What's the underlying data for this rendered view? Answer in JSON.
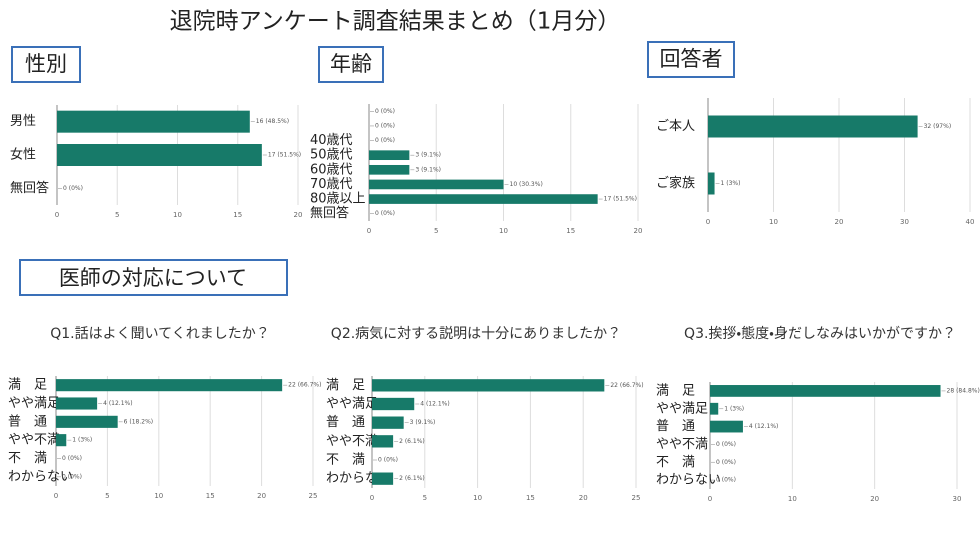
{
  "title": "退院時アンケート調査結果まとめ（1月分）",
  "section": "医師の対応について",
  "chart_data": [
    {
      "type": "bar",
      "orientation": "horizontal",
      "title": "性別",
      "color": "#177a69",
      "categories": [
        "男性",
        "女性",
        "無回答"
      ],
      "values": [
        16,
        17,
        0
      ],
      "value_labels": [
        "16 (48.5%)",
        "17 (51.5%)",
        "0 (0%)"
      ],
      "xlim": [
        0,
        20
      ],
      "xticks": [
        0,
        5,
        10,
        15,
        20
      ],
      "grid": true
    },
    {
      "type": "bar",
      "orientation": "horizontal",
      "title": "年齢",
      "color": "#177a69",
      "categories": [
        null,
        null,
        "40歳代",
        "50歳代",
        "60歳代",
        "70歳代",
        "80歳以上",
        "無回答"
      ],
      "values": [
        0,
        0,
        0,
        3,
        3,
        10,
        17,
        0
      ],
      "value_labels": [
        "0 (0%)",
        "0 (0%)",
        "0 (0%)",
        "3 (9.1%)",
        "3 (9.1%)",
        "10 (30.3%)",
        "17 (51.5%)",
        "0 (0%)"
      ],
      "xlim": [
        0,
        20
      ],
      "xticks": [
        0,
        5,
        10,
        15,
        20
      ],
      "grid": true
    },
    {
      "type": "bar",
      "orientation": "horizontal",
      "title": "回答者",
      "color": "#177a69",
      "categories": [
        "ご本人",
        "ご家族"
      ],
      "values": [
        32,
        1
      ],
      "value_labels": [
        "32 (97%)",
        "1 (3%)"
      ],
      "xlim": [
        0,
        40
      ],
      "xticks": [
        0,
        10,
        20,
        30,
        40
      ],
      "grid": true
    },
    {
      "type": "bar",
      "orientation": "horizontal",
      "title": "Q1.話はよく聞いてくれましたか？",
      "color": "#177a69",
      "categories": [
        "満　足",
        "やや満足",
        "普　通",
        "やや不満",
        "不　満",
        "わからない"
      ],
      "values": [
        22,
        4,
        6,
        1,
        0,
        0
      ],
      "value_labels": [
        "22 (66.7%)",
        "4 (12.1%)",
        "6 (18.2%)",
        "1 (3%)",
        "0 (0%)",
        "0 (0%)"
      ],
      "xlim": [
        0,
        25
      ],
      "xticks": [
        0,
        5,
        10,
        15,
        20,
        25
      ],
      "grid": true
    },
    {
      "type": "bar",
      "orientation": "horizontal",
      "title": "Q2.病気に対する説明は十分にありましたか？",
      "color": "#177a69",
      "categories": [
        "満　足",
        "やや満足",
        "普　通",
        "やや不満",
        "不　満",
        "わからない"
      ],
      "values": [
        22,
        4,
        3,
        2,
        0,
        2
      ],
      "value_labels": [
        "22 (66.7%)",
        "4 (12.1%)",
        "3 (9.1%)",
        "2 (6.1%)",
        "0 (0%)",
        "2 (6.1%)"
      ],
      "xlim": [
        0,
        25
      ],
      "xticks": [
        0,
        5,
        10,
        15,
        20,
        25
      ],
      "grid": true
    },
    {
      "type": "bar",
      "orientation": "horizontal",
      "title": "Q3.挨拶・態度・身だしなみはいかがですか？",
      "color": "#177a69",
      "categories": [
        "満　足",
        "やや満足",
        "普　通",
        "やや不満",
        "不　満",
        "わからない"
      ],
      "values": [
        28,
        1,
        4,
        0,
        0,
        0
      ],
      "value_labels": [
        "28 (84.8%)",
        "1 (3%)",
        "4 (12.1%)",
        "0 (0%)",
        "0 (0%)",
        "0 (0%)"
      ],
      "xlim": [
        0,
        30
      ],
      "xticks": [
        0,
        10,
        20,
        30
      ],
      "grid": true
    }
  ]
}
